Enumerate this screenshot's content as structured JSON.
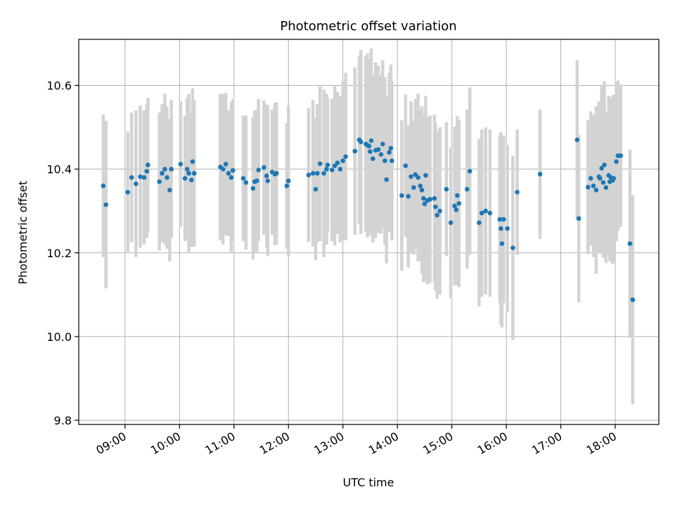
{
  "chart_data": {
    "type": "scatter",
    "title": "Photometric offset variation",
    "xlabel": "UTC time",
    "ylabel": "Photometric offset",
    "x_unit": "hours UTC",
    "xlim": [
      8.15,
      18.8
    ],
    "ylim": [
      9.79,
      10.71
    ],
    "x_ticks": [
      9,
      10,
      11,
      12,
      13,
      14,
      15,
      16,
      17,
      18
    ],
    "x_tick_labels": [
      "09:00",
      "10:00",
      "11:00",
      "12:00",
      "13:00",
      "14:00",
      "15:00",
      "16:00",
      "17:00",
      "18:00"
    ],
    "y_ticks": [
      9.8,
      10.0,
      10.2,
      10.4,
      10.6
    ],
    "y_tick_labels": [
      "9.8",
      "10.0",
      "10.2",
      "10.4",
      "10.6"
    ],
    "grid": true,
    "colors": {
      "points": "#1f77b4",
      "errorbars": "#d3d3d3",
      "grid": "#b0b0b0"
    },
    "series": [
      {
        "points": [
          [
            8.6,
            10.36,
            0.17
          ],
          [
            8.65,
            10.315,
            0.2
          ],
          [
            9.05,
            10.345,
            0.145
          ],
          [
            9.12,
            10.38,
            0.155
          ],
          [
            9.2,
            10.365,
            0.175
          ],
          [
            9.28,
            10.382,
            0.17
          ],
          [
            9.35,
            10.38,
            0.16
          ],
          [
            9.4,
            10.395,
            0.16
          ],
          [
            9.42,
            10.41,
            0.16
          ],
          [
            9.63,
            10.37,
            0.165
          ],
          [
            9.68,
            10.39,
            0.165
          ],
          [
            9.73,
            10.4,
            0.18
          ],
          [
            9.77,
            10.38,
            0.17
          ],
          [
            9.82,
            10.35,
            0.17
          ],
          [
            9.85,
            10.4,
            0.165
          ],
          [
            10.02,
            10.412,
            0.15
          ],
          [
            10.1,
            10.378,
            0.15
          ],
          [
            10.14,
            10.4,
            0.17
          ],
          [
            10.17,
            10.39,
            0.19
          ],
          [
            10.22,
            10.374,
            0.16
          ],
          [
            10.24,
            10.418,
            0.175
          ],
          [
            10.27,
            10.39,
            0.175
          ],
          [
            10.75,
            10.405,
            0.175
          ],
          [
            10.8,
            10.4,
            0.18
          ],
          [
            10.85,
            10.412,
            0.17
          ],
          [
            10.9,
            10.39,
            0.15
          ],
          [
            10.95,
            10.38,
            0.18
          ],
          [
            10.98,
            10.397,
            0.17
          ],
          [
            11.17,
            10.378,
            0.15
          ],
          [
            11.22,
            10.368,
            0.16
          ],
          [
            11.35,
            10.354,
            0.17
          ],
          [
            11.38,
            10.37,
            0.17
          ],
          [
            11.42,
            10.372,
            0.17
          ],
          [
            11.45,
            10.398,
            0.17
          ],
          [
            11.55,
            10.404,
            0.16
          ],
          [
            11.6,
            10.384,
            0.17
          ],
          [
            11.62,
            10.372,
            0.18
          ],
          [
            11.7,
            10.393,
            0.15
          ],
          [
            11.75,
            10.388,
            0.17
          ],
          [
            11.78,
            10.39,
            0.17
          ],
          [
            11.97,
            10.36,
            0.15
          ],
          [
            12.0,
            10.372,
            0.18
          ],
          [
            12.37,
            10.386,
            0.16
          ],
          [
            12.45,
            10.39,
            0.175
          ],
          [
            12.5,
            10.352,
            0.17
          ],
          [
            12.53,
            10.39,
            0.165
          ],
          [
            12.58,
            10.413,
            0.185
          ],
          [
            12.65,
            10.39,
            0.2
          ],
          [
            12.7,
            10.4,
            0.18
          ],
          [
            12.72,
            10.41,
            0.16
          ],
          [
            12.8,
            10.398,
            0.17
          ],
          [
            12.85,
            10.408,
            0.19
          ],
          [
            12.9,
            10.415,
            0.17
          ],
          [
            12.95,
            10.4,
            0.175
          ],
          [
            13.0,
            10.42,
            0.19
          ],
          [
            13.05,
            10.43,
            0.2
          ],
          [
            13.22,
            10.443,
            0.2
          ],
          [
            13.3,
            10.47,
            0.2
          ],
          [
            13.33,
            10.465,
            0.22
          ],
          [
            13.42,
            10.46,
            0.21
          ],
          [
            13.45,
            10.457,
            0.22
          ],
          [
            13.48,
            10.455,
            0.21
          ],
          [
            13.5,
            10.442,
            0.2
          ],
          [
            13.52,
            10.468,
            0.22
          ],
          [
            13.55,
            10.425,
            0.2
          ],
          [
            13.6,
            10.445,
            0.21
          ],
          [
            13.65,
            10.447,
            0.2
          ],
          [
            13.7,
            10.435,
            0.19
          ],
          [
            13.73,
            10.46,
            0.2
          ],
          [
            13.77,
            10.42,
            0.2
          ],
          [
            13.8,
            10.375,
            0.2
          ],
          [
            13.85,
            10.44,
            0.19
          ],
          [
            13.88,
            10.45,
            0.2
          ],
          [
            13.9,
            10.42,
            0.19
          ],
          [
            14.08,
            10.337,
            0.18
          ],
          [
            14.15,
            10.408,
            0.17
          ],
          [
            14.2,
            10.335,
            0.17
          ],
          [
            14.25,
            10.382,
            0.18
          ],
          [
            14.3,
            10.356,
            0.16
          ],
          [
            14.33,
            10.387,
            0.18
          ],
          [
            14.38,
            10.38,
            0.2
          ],
          [
            14.42,
            10.36,
            0.18
          ],
          [
            14.45,
            10.35,
            0.2
          ],
          [
            14.48,
            10.33,
            0.2
          ],
          [
            14.5,
            10.317,
            0.18
          ],
          [
            14.52,
            10.385,
            0.19
          ],
          [
            14.55,
            10.325,
            0.2
          ],
          [
            14.6,
            10.328,
            0.2
          ],
          [
            14.68,
            10.33,
            0.2
          ],
          [
            14.7,
            10.31,
            0.2
          ],
          [
            14.73,
            10.29,
            0.2
          ],
          [
            14.78,
            10.3,
            0.2
          ],
          [
            14.9,
            10.352,
            0.16
          ],
          [
            14.98,
            10.272,
            0.18
          ],
          [
            15.05,
            10.312,
            0.19
          ],
          [
            15.08,
            10.303,
            0.18
          ],
          [
            15.1,
            10.337,
            0.19
          ],
          [
            15.13,
            10.318,
            0.2
          ],
          [
            15.28,
            10.352,
            0.19
          ],
          [
            15.33,
            10.395,
            0.2
          ],
          [
            15.5,
            10.272,
            0.2
          ],
          [
            15.55,
            10.295,
            0.2
          ],
          [
            15.62,
            10.3,
            0.2
          ],
          [
            15.7,
            10.295,
            0.2
          ],
          [
            15.88,
            10.28,
            0.2
          ],
          [
            15.9,
            10.258,
            0.23
          ],
          [
            15.92,
            10.222,
            0.2
          ],
          [
            15.95,
            10.28,
            0.2
          ],
          [
            16.02,
            10.258,
            0.2
          ],
          [
            16.12,
            10.212,
            0.22
          ],
          [
            16.2,
            10.345,
            0.15
          ],
          [
            16.62,
            10.388,
            0.155
          ],
          [
            17.3,
            10.47,
            0.19
          ],
          [
            17.33,
            10.282,
            0.2
          ],
          [
            17.5,
            10.357,
            0.16
          ],
          [
            17.55,
            10.378,
            0.16
          ],
          [
            17.6,
            10.36,
            0.17
          ],
          [
            17.65,
            10.35,
            0.2
          ],
          [
            17.7,
            10.382,
            0.18
          ],
          [
            17.72,
            10.378,
            0.18
          ],
          [
            17.75,
            10.402,
            0.2
          ],
          [
            17.78,
            10.368,
            0.18
          ],
          [
            17.8,
            10.41,
            0.2
          ],
          [
            17.83,
            10.356,
            0.18
          ],
          [
            17.88,
            10.385,
            0.19
          ],
          [
            17.9,
            10.37,
            0.19
          ],
          [
            17.92,
            10.38,
            0.19
          ],
          [
            17.95,
            10.373,
            0.2
          ],
          [
            17.97,
            10.378,
            0.2
          ],
          [
            18.02,
            10.418,
            0.19
          ],
          [
            18.05,
            10.432,
            0.18
          ],
          [
            18.1,
            10.432,
            0.17
          ],
          [
            18.27,
            10.222,
            0.225
          ],
          [
            18.32,
            10.088,
            0.25
          ]
        ]
      }
    ]
  }
}
